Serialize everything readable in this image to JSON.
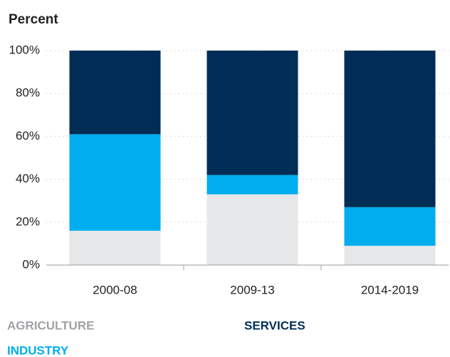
{
  "chart_data": {
    "type": "stacked_bar",
    "ylabel": "Percent",
    "categories": [
      "2000-08",
      "2009-13",
      "2014-2019"
    ],
    "series": [
      {
        "name": "AGRICULTURE",
        "color": "#e6e7e8",
        "values": [
          16,
          33,
          9
        ]
      },
      {
        "name": "INDUSTRY",
        "color": "#00aeef",
        "values": [
          45,
          9,
          18
        ]
      },
      {
        "name": "SERVICES",
        "color": "#002d56",
        "values": [
          39,
          58,
          73
        ]
      }
    ],
    "ylim": [
      0,
      100
    ],
    "yticks": [
      {
        "value": 0,
        "label": "0%"
      },
      {
        "value": 20,
        "label": "20%"
      },
      {
        "value": 40,
        "label": "40%"
      },
      {
        "value": 60,
        "label": "60%"
      },
      {
        "value": 80,
        "label": "80%"
      },
      {
        "value": 100,
        "label": "100%"
      }
    ],
    "grid": true
  }
}
